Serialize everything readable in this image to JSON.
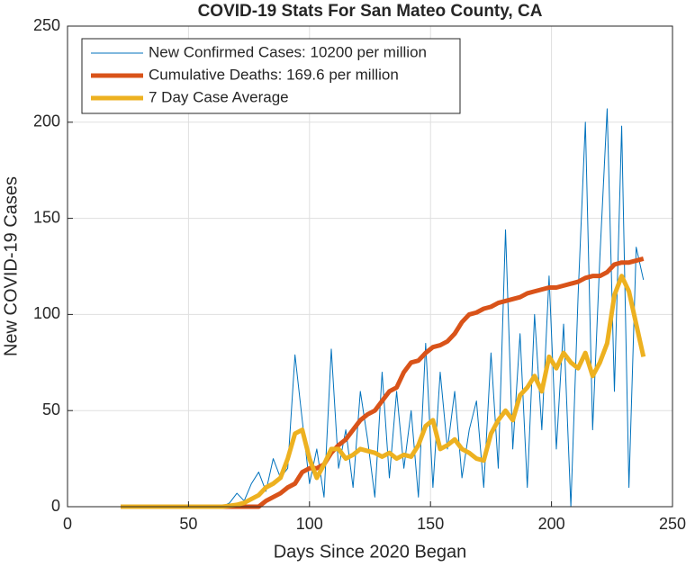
{
  "chart_data": {
    "type": "line",
    "title": "COVID-19 Stats For San Mateo County, CA",
    "xlabel": "Days Since 2020 Began",
    "ylabel": "New COVID-19 Cases",
    "xlim": [
      0,
      250
    ],
    "xticks": [
      0,
      50,
      100,
      150,
      200,
      250
    ],
    "ylim": [
      0,
      250
    ],
    "yticks": [
      0,
      50,
      100,
      150,
      200,
      250
    ],
    "grid": true,
    "legend": "upper left",
    "x": [
      22,
      25,
      28,
      31,
      34,
      37,
      40,
      43,
      46,
      49,
      52,
      55,
      58,
      61,
      64,
      67,
      70,
      73,
      76,
      79,
      82,
      85,
      88,
      91,
      94,
      97,
      100,
      103,
      106,
      109,
      112,
      115,
      118,
      121,
      124,
      127,
      130,
      133,
      136,
      139,
      142,
      145,
      148,
      151,
      154,
      157,
      160,
      163,
      166,
      169,
      172,
      175,
      178,
      181,
      184,
      187,
      190,
      193,
      196,
      199,
      202,
      205,
      208,
      211,
      214,
      217,
      220,
      223,
      226,
      229,
      232,
      235,
      238
    ],
    "series": [
      {
        "name": "New Confirmed Cases: 10200 per million",
        "color": "#0072bd",
        "width": 1,
        "values": [
          0,
          0,
          0,
          0,
          0,
          0,
          0,
          0,
          0,
          0,
          0,
          0,
          0,
          0,
          0,
          2,
          7,
          3,
          12,
          18,
          8,
          25,
          15,
          20,
          79,
          45,
          12,
          30,
          5,
          82,
          20,
          40,
          10,
          60,
          35,
          5,
          70,
          15,
          60,
          20,
          50,
          5,
          85,
          10,
          70,
          30,
          60,
          15,
          40,
          55,
          10,
          80,
          20,
          144,
          30,
          90,
          10,
          100,
          40,
          120,
          30,
          95,
          0,
          110,
          200,
          40,
          130,
          207,
          60,
          198,
          10,
          135,
          118
        ]
      },
      {
        "name": "Cumulative Deaths: 169.6 per million",
        "color": "#d95319",
        "width": 5,
        "values": [
          0,
          0,
          0,
          0,
          0,
          0,
          0,
          0,
          0,
          0,
          0,
          0,
          0,
          0,
          0,
          0,
          0,
          0,
          0,
          0,
          3,
          5,
          7,
          10,
          12,
          18,
          20,
          20,
          22,
          28,
          32,
          35,
          40,
          45,
          48,
          50,
          55,
          60,
          62,
          70,
          75,
          76,
          80,
          83,
          84,
          86,
          90,
          96,
          100,
          101,
          103,
          104,
          106,
          107,
          108,
          109,
          111,
          112,
          113,
          114,
          114,
          115,
          116,
          117,
          119,
          120,
          120,
          122,
          126,
          127,
          127,
          128,
          129
        ]
      },
      {
        "name": "7 Day Case Average",
        "color": "#edb120",
        "width": 5,
        "values": [
          0,
          0,
          0,
          0,
          0,
          0,
          0,
          0,
          0,
          0,
          0,
          0,
          0,
          0,
          0,
          0.5,
          1,
          2,
          4,
          6,
          10,
          12,
          15,
          25,
          38,
          40,
          25,
          15,
          22,
          30,
          30,
          25,
          27,
          30,
          29,
          28,
          26,
          28,
          25,
          27,
          26,
          32,
          42,
          45,
          30,
          32,
          35,
          30,
          28,
          25,
          24,
          38,
          45,
          50,
          45,
          58,
          62,
          68,
          60,
          78,
          72,
          80,
          75,
          72,
          80,
          68,
          75,
          85,
          110,
          120,
          112,
          95,
          78
        ]
      }
    ]
  }
}
